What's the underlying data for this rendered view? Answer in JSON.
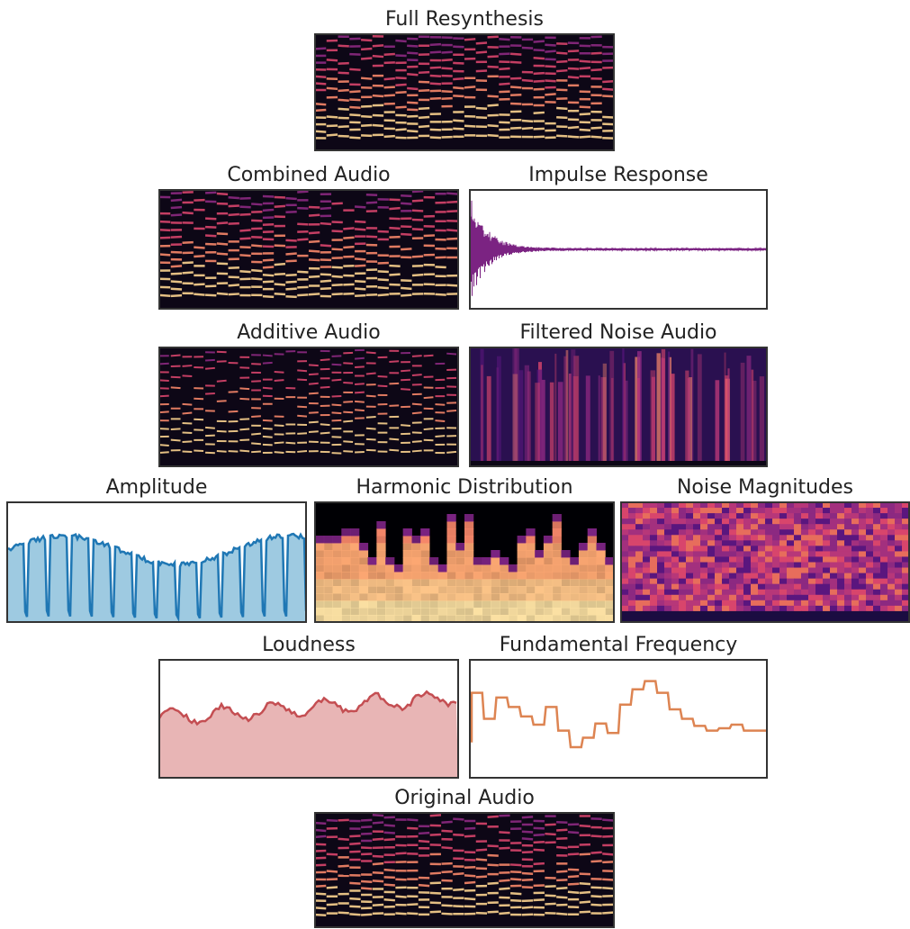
{
  "panels": [
    {
      "title": "Full Resynthesis"
    },
    {
      "title": "Combined Audio"
    },
    {
      "title": "Impulse Response"
    },
    {
      "title": "Additive Audio"
    },
    {
      "title": "Filtered Noise Audio"
    },
    {
      "title": "Amplitude"
    },
    {
      "title": "Harmonic Distribution"
    },
    {
      "title": "Noise Magnitudes"
    },
    {
      "title": "Loudness"
    },
    {
      "title": "Fundamental Frequency"
    },
    {
      "title": "Original Audio"
    }
  ]
}
